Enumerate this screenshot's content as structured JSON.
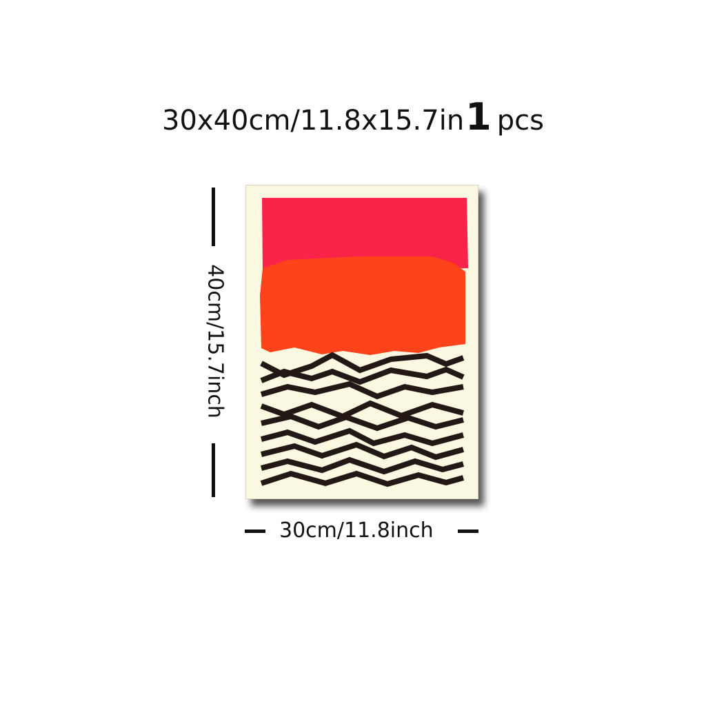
{
  "headline": {
    "size_text": "30x40cm/11.8x15.7in",
    "quantity_number": "1",
    "quantity_unit": "pcs"
  },
  "dimensions": {
    "height_label": "40cm/15.7inch",
    "width_label": "30cm/11.8inch"
  },
  "colors": {
    "background": "#ffffff",
    "poster_paper": "#fbf8e2",
    "top_band": "#f9234a",
    "middle_band": "#fe4219",
    "zigzag_lines": "#231815",
    "text": "#111111"
  }
}
